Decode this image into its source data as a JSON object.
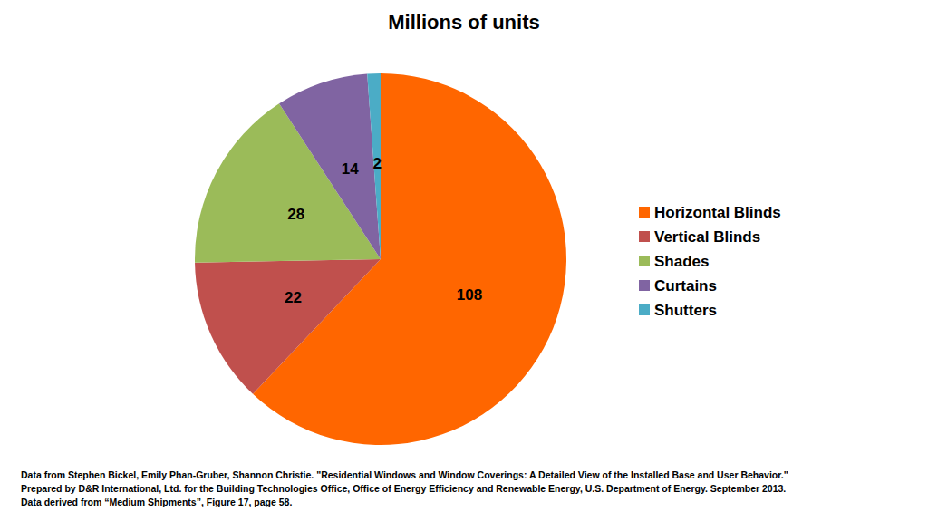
{
  "chart_data": {
    "type": "pie",
    "title": "Millions of units",
    "categories": [
      "Horizontal Blinds",
      "Vertical Blinds",
      "Shades",
      "Curtains",
      "Shutters"
    ],
    "values": [
      108,
      22,
      28,
      14,
      2
    ],
    "colors": [
      "#ff6600",
      "#c0504d",
      "#9bbb59",
      "#8064a2",
      "#4bacc6"
    ],
    "legend": "right",
    "data_labels": true,
    "annotations": [
      "Data from Stephen Bickel, Emily Phan-Gruber, Shannon Christie. \"Residential Windows and Window Coverings: A Detailed View of the Installed Base and User Behavior.\"",
      "Prepared by D&R International, Ltd. for the Building Technologies Office, Office of Energy Efficiency and Renewable Energy, U.S. Department of Energy. September 2013.",
      "Data derived from “Medium Shipments”, Figure 17, page 58."
    ]
  }
}
